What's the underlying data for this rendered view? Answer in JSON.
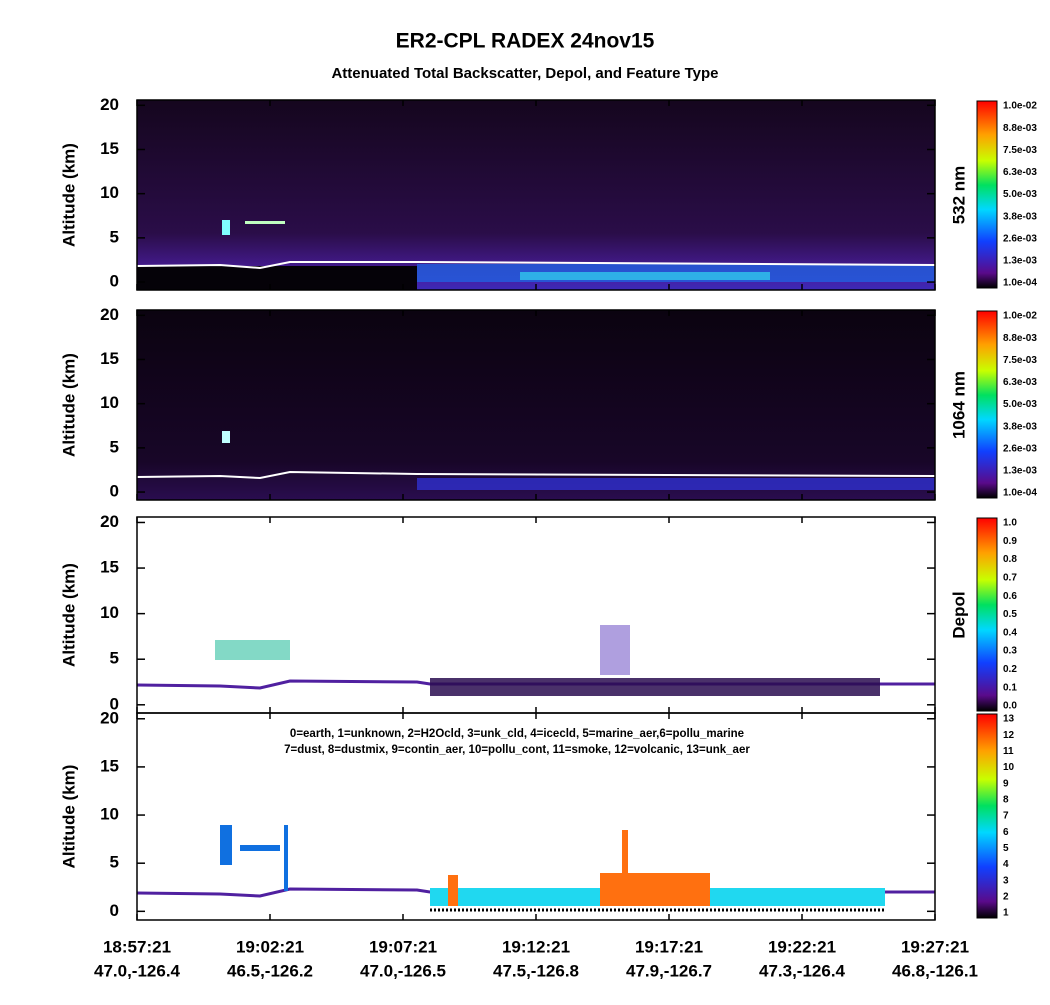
{
  "title": "ER2-CPL RADEX 24nov15",
  "subtitle": "Attenuated Total Backscatter, Depol, and Feature Type",
  "x_labels": [
    {
      "time": "18:57:21",
      "location": "47.0,-126.4"
    },
    {
      "time": "19:02:21",
      "location": "46.5,-126.2"
    },
    {
      "time": "19:07:21",
      "location": "47.0,-126.5"
    },
    {
      "time": "19:12:21",
      "location": "47.5,-126.8"
    },
    {
      "time": "19:17:21",
      "location": "47.9,-126.7"
    },
    {
      "time": "19:22:21",
      "location": "47.3,-126.4"
    },
    {
      "time": "19:27:21",
      "location": "46.8,-126.1"
    }
  ],
  "panels": [
    {
      "ylabel": "Altitude (km)",
      "ylim": [
        -0.9,
        20.6
      ],
      "yticks": [
        0,
        5,
        10,
        15,
        20
      ],
      "colorbar": {
        "label": "532 nm",
        "tick_labels": [
          "1.0e-02",
          "8.8e-03",
          "7.5e-03",
          "6.3e-03",
          "5.0e-03",
          "3.8e-03",
          "2.6e-03",
          "1.3e-03",
          "1.0e-04"
        ]
      }
    },
    {
      "ylabel": "Altitude (km)",
      "ylim": [
        -0.9,
        20.6
      ],
      "yticks": [
        0,
        5,
        10,
        15,
        20
      ],
      "colorbar": {
        "label": "1064 nm",
        "tick_labels": [
          "1.0e-02",
          "8.8e-03",
          "7.5e-03",
          "6.3e-03",
          "5.0e-03",
          "3.8e-03",
          "2.6e-03",
          "1.3e-03",
          "1.0e-04"
        ]
      }
    },
    {
      "ylabel": "Altitude (km)",
      "ylim": [
        -0.9,
        20.6
      ],
      "yticks": [
        0,
        5,
        10,
        15,
        20
      ],
      "colorbar": {
        "label": "Depol",
        "tick_labels": [
          "1.0",
          "0.9",
          "0.8",
          "0.7",
          "0.6",
          "0.5",
          "0.4",
          "0.3",
          "0.2",
          "0.1",
          "0.0"
        ]
      }
    },
    {
      "ylabel": "Altitude (km)",
      "ylim": [
        -0.9,
        20.6
      ],
      "yticks": [
        0,
        5,
        10,
        15,
        20
      ],
      "colorbar": {
        "tick_labels": [
          "13",
          "12",
          "11",
          "10",
          "9",
          "8",
          "7",
          "6",
          "5",
          "4",
          "3",
          "2",
          "1"
        ]
      },
      "legend": [
        "0=earth, 1=unknown, 2=H2Ocld, 3=unk_cld, 4=icecld, 5=marine_aer,6=pollu_marine",
        "7=dust, 8=dustmix, 9=contin_aer, 10=pollu_cont, 11=smoke, 12=volcanic, 13=unk_aer"
      ]
    }
  ]
}
